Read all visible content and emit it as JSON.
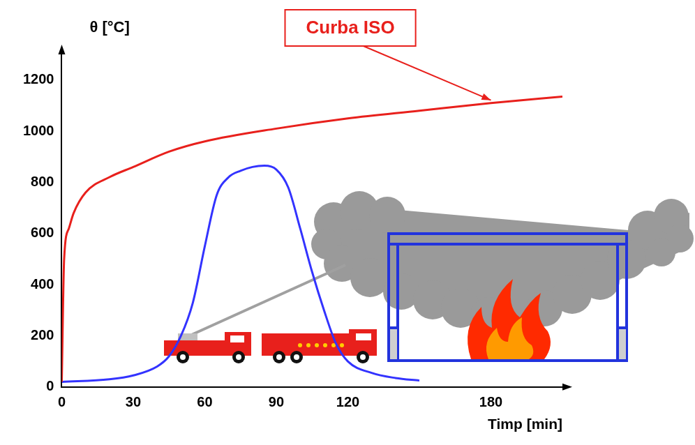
{
  "chart_data": {
    "type": "line",
    "x_label": "Timp [min]",
    "y_label": "θ [°C]",
    "annotations": [
      {
        "text": "Curba ISO",
        "series": 0
      }
    ],
    "series": [
      {
        "color": "#e8201c",
        "x": [
          0,
          1,
          3,
          5,
          10,
          20,
          30,
          45,
          60,
          90,
          120,
          150,
          180,
          210
        ],
        "values": [
          20,
          500,
          620,
          680,
          760,
          820,
          860,
          920,
          960,
          1010,
          1050,
          1080,
          1110,
          1135
        ]
      },
      {
        "color": "#3333ff",
        "x": [
          0,
          20,
          30,
          40,
          45,
          50,
          55,
          60,
          65,
          70,
          75,
          80,
          85,
          90,
          95,
          100,
          105,
          110,
          115,
          120,
          130,
          140,
          150
        ],
        "values": [
          20,
          30,
          45,
          80,
          120,
          200,
          330,
          550,
          750,
          820,
          845,
          860,
          865,
          850,
          780,
          620,
          450,
          300,
          170,
          100,
          55,
          35,
          25
        ]
      }
    ],
    "xlim": [
      0,
      210
    ],
    "xticks": [
      0,
      30,
      60,
      90,
      120,
      180
    ],
    "ylim": [
      0,
      1300
    ],
    "yticks": [
      0,
      200,
      400,
      600,
      800,
      1000,
      1200
    ],
    "grid": false,
    "legend": false
  }
}
